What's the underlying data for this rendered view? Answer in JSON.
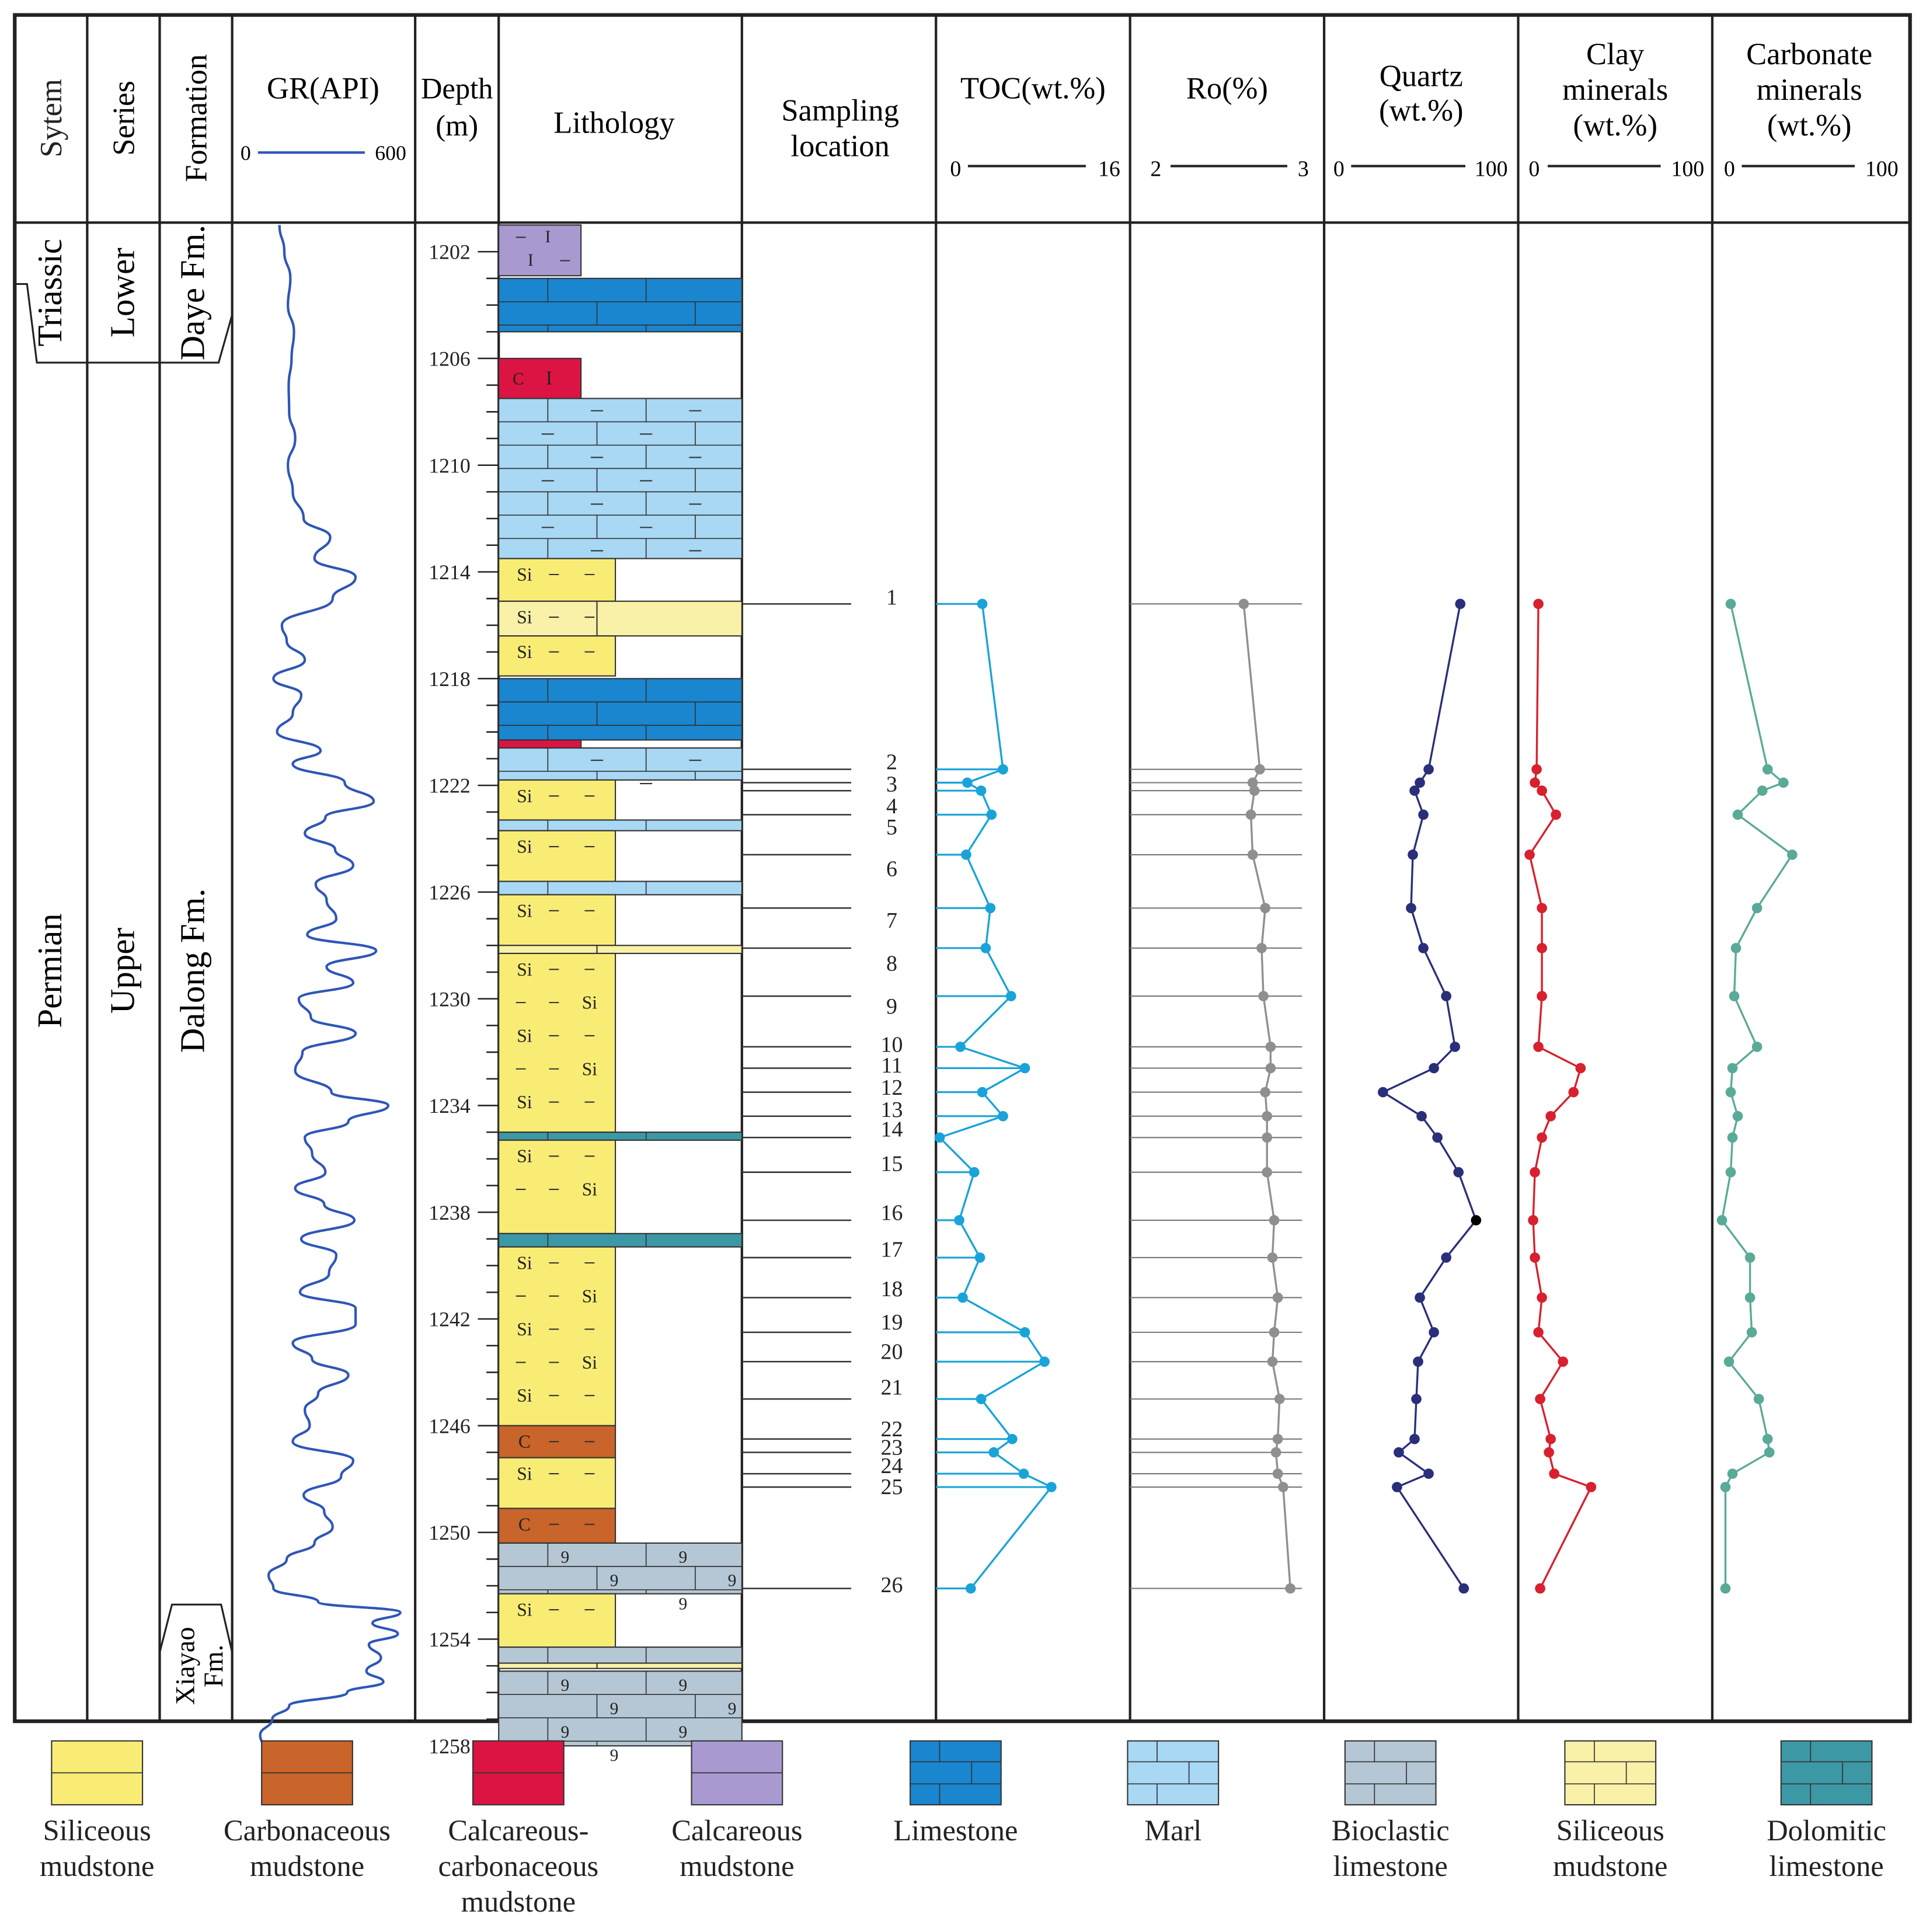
{
  "headers": {
    "system": "Sytem",
    "series": "Series",
    "formation": "Formation",
    "gr": "GR(API)",
    "depth1": "Depth",
    "depth2": "(m)",
    "lithology": "Lithology",
    "sampling1": "Sampling",
    "sampling2": "location",
    "toc": "TOC(wt.%)",
    "ro": "Ro(%)",
    "quartz1": "Quartz",
    "quartz2": "(wt.%)",
    "clay1": "Clay",
    "clay2": "minerals",
    "clay3": "(wt.%)",
    "carb1": "Carbonate",
    "carb2": "minerals",
    "carb3": "(wt.%)"
  },
  "strat": {
    "system_upper": "Triassic",
    "system_lower": "Permian",
    "series_upper": "Lower",
    "series_lower": "Upper",
    "formation_daye": "Daye Fm.",
    "formation_dalong": "Dalong Fm.",
    "formation_xiayao1": "Xiayao",
    "formation_xiayao2": "Fm."
  },
  "lith_abbr": {
    "si": "Si",
    "c": "C"
  },
  "legend": [
    {
      "key": "sil",
      "line1": "Siliceous",
      "line2": "mudstone",
      "line3": ""
    },
    {
      "key": "carbon",
      "line1": "Carbonaceous",
      "line2": "mudstone",
      "line3": ""
    },
    {
      "key": "calccarb",
      "line1": "Calcareous-",
      "line2": "carbonaceous",
      "line3": "mudstone"
    },
    {
      "key": "calc",
      "line1": "Calcareous",
      "line2": "mudstone",
      "line3": ""
    },
    {
      "key": "lime",
      "line1": "Limestone",
      "line2": "",
      "line3": ""
    },
    {
      "key": "marl",
      "line1": "Marl",
      "line2": "",
      "line3": ""
    },
    {
      "key": "bio",
      "line1": "Bioclastic",
      "line2": "limestone",
      "line3": ""
    },
    {
      "key": "sil2",
      "line1": "Siliceous",
      "line2": "mudstone",
      "line3": ""
    },
    {
      "key": "dolo",
      "line1": "Dolomitic",
      "line2": "limestone",
      "line3": ""
    }
  ],
  "colors": {
    "gr": "#2e56b8",
    "toc": "#1aa3d8",
    "ro": "#8f8f8f",
    "quartz": "#2a2f7a",
    "clay": "#d8202e",
    "carbonate": "#5aaa98",
    "siliceous": "#f8ec75",
    "siliceous_light": "#faf1a8",
    "carbonaceous": "#c9642a",
    "calc_carb": "#dc1443",
    "calcareous": "#a89ad0",
    "limestone": "#1a86d0",
    "marl": "#a8d8f4",
    "bioclastic": "#b5c7d4",
    "dolomitic": "#3d98a6"
  },
  "chart_data": {
    "type": "line",
    "title": "",
    "depth_axis": {
      "label": "Depth (m)",
      "range": [
        1201,
        1258
      ],
      "ticks": [
        1202,
        1206,
        1210,
        1214,
        1218,
        1222,
        1226,
        1230,
        1234,
        1238,
        1242,
        1246,
        1250,
        1254,
        1258
      ]
    },
    "gr_axis": {
      "label": "GR(API)",
      "range": [
        0,
        600
      ],
      "tick_labels": [
        "0",
        "600"
      ]
    },
    "gr_curve": {
      "depth": [
        1201.0,
        1202.0,
        1203.0,
        1204.0,
        1205.0,
        1206.0,
        1207.0,
        1208.0,
        1209.0,
        1210.0,
        1211.0,
        1212.0,
        1212.7,
        1213.5,
        1214.2,
        1215.0,
        1216.0,
        1216.6,
        1217.3,
        1218.0,
        1218.6,
        1219.3,
        1220.0,
        1220.7,
        1221.2,
        1221.9,
        1222.6,
        1223.2,
        1223.8,
        1224.4,
        1225.0,
        1225.7,
        1226.3,
        1227.0,
        1227.6,
        1228.2,
        1228.8,
        1229.4,
        1230.0,
        1230.7,
        1231.3,
        1232.0,
        1232.7,
        1233.5,
        1234.0,
        1234.6,
        1235.2,
        1235.8,
        1236.5,
        1237.1,
        1237.7,
        1238.3,
        1239.0,
        1239.6,
        1240.3,
        1241.0,
        1241.6,
        1242.2,
        1242.9,
        1243.5,
        1244.1,
        1244.8,
        1245.4,
        1246.0,
        1246.6,
        1247.3,
        1247.9,
        1248.6,
        1249.2,
        1249.8,
        1250.4,
        1251.0,
        1251.6,
        1252.1,
        1252.6,
        1253.0,
        1253.4,
        1253.8,
        1254.2,
        1254.7,
        1255.2,
        1255.6,
        1256.0,
        1256.5,
        1257.0,
        1257.6,
        1258.0
      ],
      "gr": [
        140,
        160,
        185,
        175,
        200,
        190,
        178,
        180,
        205,
        175,
        195,
        240,
        350,
        285,
        455,
        360,
        150,
        170,
        245,
        115,
        230,
        195,
        130,
        310,
        195,
        410,
        530,
        330,
        245,
        370,
        445,
        290,
        335,
        375,
        255,
        540,
        335,
        445,
        220,
        270,
        455,
        235,
        205,
        355,
        590,
        425,
        245,
        275,
        330,
        205,
        325,
        450,
        230,
        375,
        345,
        225,
        455,
        455,
        195,
        275,
        425,
        300,
        245,
        265,
        195,
        445,
        395,
        240,
        325,
        360,
        285,
        170,
        95,
        115,
        300,
        640,
        525,
        630,
        510,
        560,
        500,
        570,
        420,
        180,
        110,
        60,
        70
      ]
    },
    "samples": [
      1,
      2,
      3,
      4,
      5,
      6,
      7,
      8,
      9,
      10,
      11,
      12,
      13,
      14,
      15,
      16,
      17,
      18,
      19,
      20,
      21,
      22,
      23,
      24,
      25,
      26
    ],
    "sample_depth": [
      1215.2,
      1221.4,
      1221.9,
      1222.2,
      1223.1,
      1224.6,
      1226.6,
      1228.1,
      1229.9,
      1231.8,
      1232.6,
      1233.5,
      1234.4,
      1235.2,
      1236.5,
      1238.3,
      1239.7,
      1241.2,
      1242.5,
      1243.6,
      1245.0,
      1246.5,
      1247.0,
      1247.8,
      1248.3,
      1252.1
    ],
    "sample_label_offsets_note": "labels stacked where sample depths overlap",
    "toc": {
      "label": "TOC(wt.%)",
      "range": [
        0,
        16
      ],
      "tick_labels": [
        "0",
        "16"
      ],
      "values": [
        3.7,
        5.5,
        2.4,
        3.6,
        4.5,
        2.3,
        4.4,
        4.0,
        6.2,
        1.8,
        7.4,
        3.7,
        5.5,
        0.0,
        3.0,
        1.7,
        3.5,
        2.0,
        7.4,
        9.1,
        3.6,
        6.3,
        4.7,
        7.3,
        9.7,
        2.7
      ]
    },
    "ro": {
      "label": "Ro(%)",
      "range": [
        2,
        3
      ],
      "tick_labels": [
        "2",
        "3"
      ],
      "values": [
        2.62,
        2.71,
        2.67,
        2.68,
        2.66,
        2.67,
        2.74,
        2.72,
        2.73,
        2.77,
        2.77,
        2.74,
        2.75,
        2.75,
        2.75,
        2.79,
        2.78,
        2.81,
        2.79,
        2.78,
        2.82,
        2.81,
        2.8,
        2.81,
        2.84,
        2.88
      ]
    },
    "quartz": {
      "label": "Quartz (wt.%)",
      "range": [
        0,
        100
      ],
      "tick_labels": [
        "0",
        "100"
      ],
      "values": [
        74,
        56,
        51,
        48,
        53,
        47,
        46,
        53,
        66,
        71,
        59,
        30,
        52,
        61,
        73,
        83,
        66,
        51,
        59,
        50,
        49,
        48,
        39,
        56,
        38,
        76
      ]
    },
    "clay": {
      "label": "Clay minerals (wt.%)",
      "range": [
        0,
        100
      ],
      "tick_labels": [
        "0",
        "100"
      ],
      "values": [
        8,
        7,
        6,
        10,
        18,
        3,
        10,
        10,
        10,
        8,
        32,
        28,
        15,
        10,
        6,
        5,
        6,
        10,
        8,
        22,
        9,
        15,
        14,
        17,
        38,
        9
      ]
    },
    "carbonate": {
      "label": "Carbonate minerals (wt.%)",
      "range": [
        0,
        100
      ],
      "tick_labels": [
        "0",
        "100"
      ],
      "values": [
        7,
        28,
        37,
        25,
        11,
        42,
        22,
        10,
        9,
        22,
        8,
        7,
        11,
        8,
        7,
        2,
        18,
        18,
        19,
        6,
        23,
        28,
        29,
        8,
        4,
        4
      ]
    }
  }
}
